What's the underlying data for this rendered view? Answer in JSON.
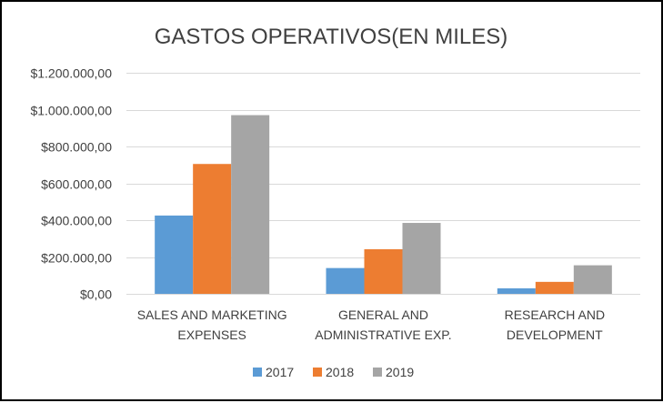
{
  "chart_data": {
    "type": "bar",
    "title": "GASTOS OPERATIVOS(EN MILES)",
    "categories": [
      [
        "SALES AND MARKETING",
        "EXPENSES"
      ],
      [
        "GENERAL AND",
        "ADMINISTRATIVE EXP."
      ],
      [
        "RESEARCH AND",
        "DEVELOPMENT"
      ]
    ],
    "series": [
      {
        "name": "2017",
        "color": "#5b9bd5",
        "values": [
          425000,
          140000,
          30000
        ]
      },
      {
        "name": "2018",
        "color": "#ed7d31",
        "values": [
          705000,
          242000,
          65000
        ]
      },
      {
        "name": "2019",
        "color": "#a5a5a5",
        "values": [
          970000,
          385000,
          155000
        ]
      }
    ],
    "ylim": [
      0,
      1200000
    ],
    "yticks": [
      0,
      200000,
      400000,
      600000,
      800000,
      1000000,
      1200000
    ],
    "ytick_labels": [
      "$0,00",
      "$200.000,00",
      "$400.000,00",
      "$600.000,00",
      "$800.000,00",
      "$1.000.000,00",
      "$1.200.000,00"
    ],
    "xlabel": "",
    "ylabel": "",
    "grid": true,
    "legend_position": "bottom"
  }
}
